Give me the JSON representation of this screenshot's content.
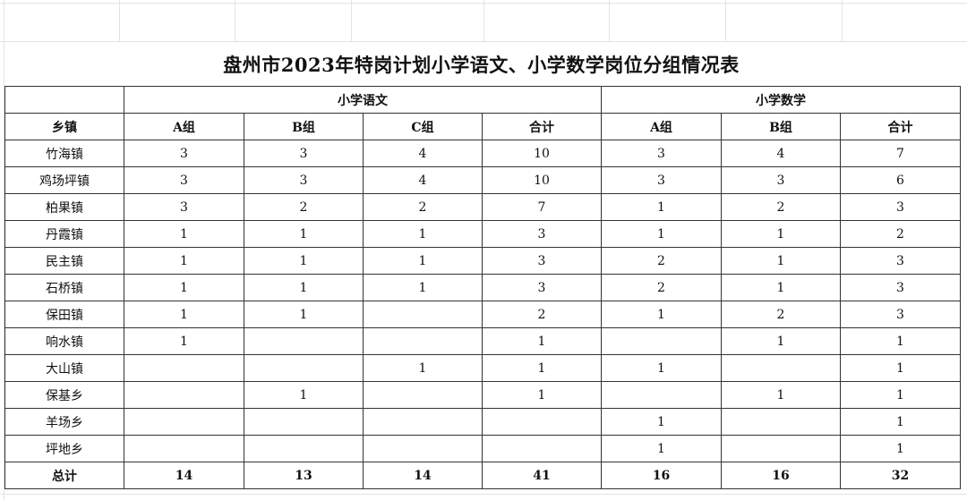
{
  "title": "盘州市2023年特岗计划小学语文、小学数学岗位分组情况表",
  "groups": {
    "chinese": "小学语文",
    "math": "小学数学"
  },
  "columns": [
    "乡镇",
    "A组",
    "B组",
    "C组",
    "合计",
    "A组",
    "B组",
    "合计"
  ],
  "rows": [
    [
      "竹海镇",
      "3",
      "3",
      "4",
      "10",
      "3",
      "4",
      "7"
    ],
    [
      "鸡场坪镇",
      "3",
      "3",
      "4",
      "10",
      "3",
      "3",
      "6"
    ],
    [
      "柏果镇",
      "3",
      "2",
      "2",
      "7",
      "1",
      "2",
      "3"
    ],
    [
      "丹霞镇",
      "1",
      "1",
      "1",
      "3",
      "1",
      "1",
      "2"
    ],
    [
      "民主镇",
      "1",
      "1",
      "1",
      "3",
      "2",
      "1",
      "3"
    ],
    [
      "石桥镇",
      "1",
      "1",
      "1",
      "3",
      "2",
      "1",
      "3"
    ],
    [
      "保田镇",
      "1",
      "1",
      "",
      "2",
      "1",
      "2",
      "3"
    ],
    [
      "响水镇",
      "1",
      "",
      "",
      "1",
      "",
      "1",
      "1"
    ],
    [
      "大山镇",
      "",
      "",
      "1",
      "1",
      "1",
      "",
      "1"
    ],
    [
      "保基乡",
      "",
      "1",
      "",
      "1",
      "",
      "1",
      "1"
    ],
    [
      "羊场乡",
      "",
      "",
      "",
      "",
      "1",
      "",
      "1"
    ],
    [
      "坪地乡",
      "",
      "",
      "",
      "",
      "1",
      "",
      "1"
    ]
  ],
  "total": [
    "总计",
    "14",
    "13",
    "14",
    "41",
    "16",
    "16",
    "32"
  ]
}
